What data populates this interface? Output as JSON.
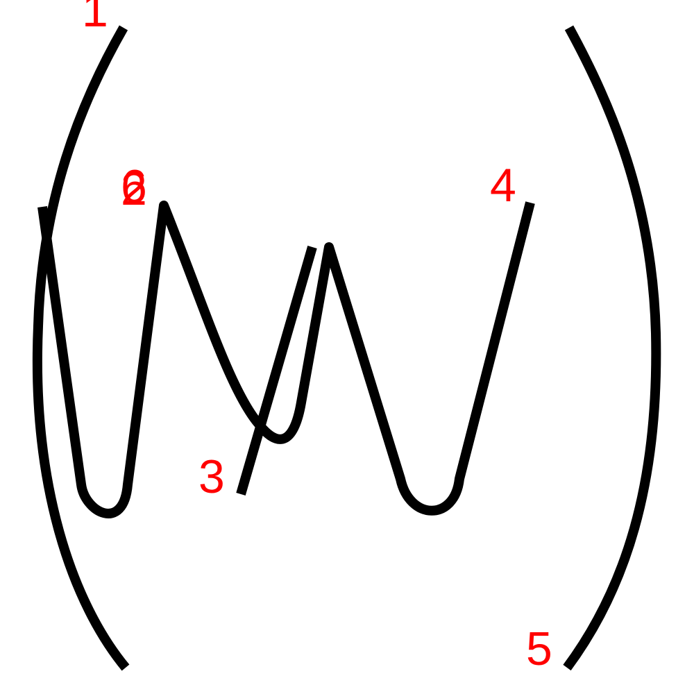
{
  "colors": {
    "background": "#ffffff",
    "stroke": "#000000",
    "label": "#ff0000"
  },
  "strokes": [
    {
      "id": "left-paren"
    },
    {
      "id": "wave"
    },
    {
      "id": "right-paren"
    }
  ],
  "labels": [
    {
      "id": "label-1",
      "text": "1"
    },
    {
      "id": "label-6",
      "text": "6"
    },
    {
      "id": "label-2",
      "text": "2"
    },
    {
      "id": "label-3",
      "text": "3"
    },
    {
      "id": "label-4",
      "text": "4"
    },
    {
      "id": "label-5",
      "text": "5"
    }
  ]
}
